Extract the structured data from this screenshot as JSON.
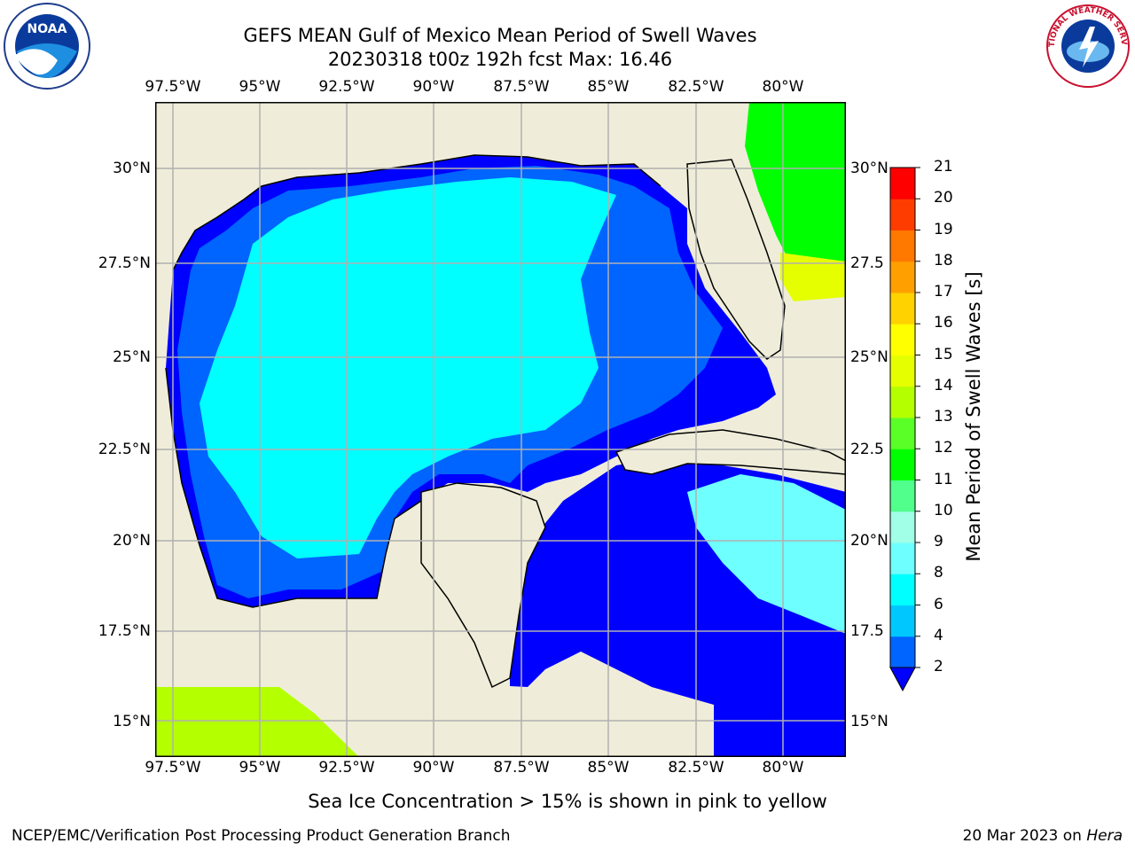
{
  "title": {
    "line1": "GEFS MEAN Gulf of Mexico Mean Period of Swell Waves",
    "line2": "20230318 t00z 192h fcst   Max: 16.46"
  },
  "logos": {
    "left": {
      "name": "noaa-logo",
      "text": "NOAA"
    },
    "right": {
      "name": "nws-logo",
      "text": "NATIONAL WEATHER SERVICE"
    }
  },
  "map": {
    "lon_ticks": [
      "97.5°W",
      "95°W",
      "92.5°W",
      "90°W",
      "87.5°W",
      "85°W",
      "82.5°W",
      "80°W"
    ],
    "lat_ticks_left": [
      "30°N",
      "27.5°N",
      "25°N",
      "22.5°N",
      "20°N",
      "17.5°N",
      "15°N"
    ],
    "lat_ticks_right": [
      "30°N",
      "27.5",
      "25°N",
      "22.5",
      "20°N",
      "17.5",
      "15°N"
    ]
  },
  "colorbar": {
    "label": "Mean Period of Swell Waves [s]",
    "ticks": [
      "2",
      "4",
      "6",
      "8",
      "9",
      "10",
      "11",
      "12",
      "13",
      "14",
      "15",
      "16",
      "17",
      "18",
      "19",
      "20",
      "21"
    ],
    "colors": [
      "#0000ff",
      "#0064ff",
      "#00c8ff",
      "#00ffff",
      "#6effff",
      "#a0ffe6",
      "#50ff8c",
      "#00ff00",
      "#5aff28",
      "#b4ff00",
      "#e6ff00",
      "#ffff00",
      "#ffd200",
      "#ffa000",
      "#ff7800",
      "#ff3c00",
      "#ff0000"
    ]
  },
  "footer": {
    "note": "Sea Ice Concentration > 15% is shown in pink to yellow",
    "left": "NCEP/EMC/Verification Post Processing Product Generation Branch",
    "right_date": "20 Mar 2023 on ",
    "right_host": "Hera"
  }
}
